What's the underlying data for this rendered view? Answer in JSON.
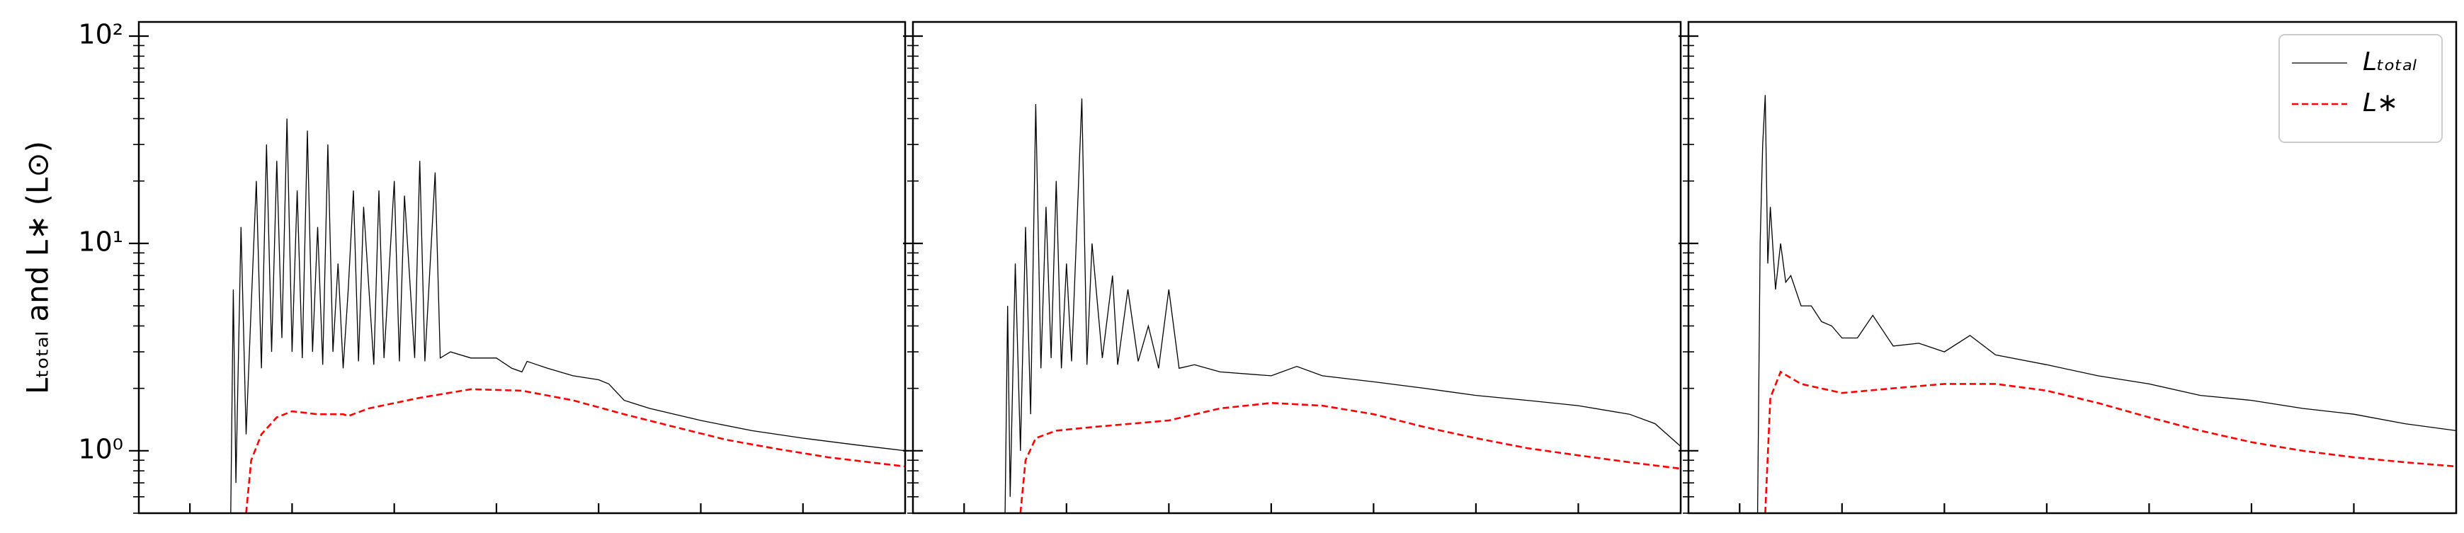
{
  "chart_data": [
    {
      "type": "line",
      "ylabel": "Lₜₒₜₐₗ and L∗ (L⊙)",
      "log": true,
      "xlim": [
        0,
        15
      ],
      "xticks": [
        1,
        3,
        5,
        7,
        9,
        11,
        13
      ],
      "ylim": [
        0.5,
        117
      ],
      "yticks": [
        {
          "value": 1,
          "label": "10⁰"
        },
        {
          "value": 10,
          "label": "10¹"
        },
        {
          "value": 100,
          "label": "10²"
        }
      ],
      "yminorticks": [
        0.5,
        0.6,
        0.7,
        0.8,
        0.9,
        2,
        3,
        4,
        5,
        6,
        7,
        8,
        9,
        20,
        30,
        40,
        50,
        60,
        70,
        80,
        90
      ],
      "series": [
        {
          "color": "#000000",
          "style": "solid",
          "x": [
            1.8,
            1.85,
            1.9,
            2.0,
            2.1,
            2.2,
            2.3,
            2.4,
            2.5,
            2.6,
            2.7,
            2.8,
            2.9,
            3.0,
            3.1,
            3.2,
            3.3,
            3.4,
            3.5,
            3.6,
            3.7,
            3.8,
            3.9,
            4.0,
            4.1,
            4.2,
            4.3,
            4.4,
            4.6,
            4.7,
            4.8,
            5.0,
            5.1,
            5.2,
            5.4,
            5.5,
            5.6,
            5.8,
            5.9,
            6.1,
            6.5,
            7.0,
            7.3,
            7.5,
            7.6,
            8.0,
            8.5,
            9.0,
            9.2,
            9.5,
            10,
            11,
            12,
            13,
            14,
            15
          ],
          "values": [
            0.5,
            6,
            0.7,
            12,
            1.2,
            5,
            20,
            2.5,
            30,
            3,
            25,
            3.5,
            40,
            3,
            18,
            2.8,
            35,
            3,
            12,
            2.6,
            30,
            3,
            8,
            2.5,
            6,
            18,
            2.7,
            15,
            2.6,
            18,
            2.8,
            20,
            2.7,
            17,
            2.8,
            25,
            2.7,
            22,
            2.8,
            3.0,
            2.8,
            2.8,
            2.5,
            2.4,
            2.7,
            2.5,
            2.3,
            2.2,
            2.1,
            1.75,
            1.6,
            1.4,
            1.25,
            1.15,
            1.07,
            1.0
          ]
        },
        {
          "color": "#ff0000",
          "style": "dashed",
          "x": [
            2.1,
            2.2,
            2.4,
            2.7,
            3.0,
            3.5,
            4.0,
            4.1,
            4.5,
            5.5,
            6.5,
            7.5,
            8.5,
            9.5,
            10.5,
            11.5,
            12.5,
            13.5,
            15
          ],
          "values": [
            0.5,
            0.9,
            1.2,
            1.45,
            1.55,
            1.5,
            1.5,
            1.47,
            1.6,
            1.8,
            1.98,
            1.95,
            1.75,
            1.5,
            1.3,
            1.13,
            1.02,
            0.93,
            0.84
          ]
        }
      ]
    },
    {
      "type": "line",
      "log": true,
      "xlim": [
        0,
        15
      ],
      "xticks": [
        1,
        3,
        5,
        7,
        9,
        11,
        13
      ],
      "ylim": [
        0.5,
        117
      ],
      "yticks": [
        1,
        10,
        100
      ],
      "yminorticks": [
        0.5,
        0.6,
        0.7,
        0.8,
        0.9,
        2,
        3,
        4,
        5,
        6,
        7,
        8,
        9,
        20,
        30,
        40,
        50,
        60,
        70,
        80,
        90
      ],
      "series": [
        {
          "color": "#000000",
          "style": "solid",
          "x": [
            1.8,
            1.85,
            1.9,
            2.0,
            2.1,
            2.2,
            2.3,
            2.4,
            2.5,
            2.6,
            2.7,
            2.8,
            2.9,
            3.0,
            3.1,
            3.3,
            3.4,
            3.5,
            3.7,
            3.9,
            4.0,
            4.2,
            4.4,
            4.6,
            4.8,
            5.0,
            5.2,
            5.5,
            6,
            7,
            7.5,
            8,
            9,
            10,
            11,
            12,
            13,
            14,
            14.5,
            15
          ],
          "values": [
            0.5,
            5,
            0.6,
            8,
            1.0,
            12,
            1.5,
            47,
            2.5,
            15,
            2.8,
            20,
            2.5,
            8,
            2.7,
            50,
            2.6,
            10,
            2.8,
            7,
            2.6,
            6,
            2.7,
            4,
            2.5,
            6,
            2.5,
            2.6,
            2.4,
            2.3,
            2.55,
            2.3,
            2.15,
            2.0,
            1.85,
            1.75,
            1.65,
            1.5,
            1.35,
            1.05
          ]
        },
        {
          "color": "#ff0000",
          "style": "dashed",
          "x": [
            2.1,
            2.2,
            2.4,
            2.8,
            3.5,
            5,
            6,
            7,
            8,
            9,
            10,
            11,
            12,
            13,
            14,
            15
          ],
          "values": [
            0.5,
            0.9,
            1.15,
            1.25,
            1.3,
            1.4,
            1.6,
            1.7,
            1.65,
            1.5,
            1.3,
            1.15,
            1.03,
            0.95,
            0.88,
            0.82
          ]
        }
      ]
    },
    {
      "type": "line",
      "log": true,
      "legend": "upper right",
      "xlim": [
        0,
        15
      ],
      "xticks": [
        1,
        3,
        5,
        7,
        9,
        11,
        13
      ],
      "ylim": [
        0.5,
        117
      ],
      "yticks": [
        1,
        10,
        100
      ],
      "yminorticks": [
        0.5,
        0.6,
        0.7,
        0.8,
        0.9,
        2,
        3,
        4,
        5,
        6,
        7,
        8,
        9,
        20,
        30,
        40,
        50,
        60,
        70,
        80,
        90
      ],
      "series": [
        {
          "name": "Lₜₒₜₐₗ",
          "color": "#000000",
          "style": "solid",
          "x": [
            1.35,
            1.4,
            1.45,
            1.5,
            1.55,
            1.6,
            1.7,
            1.8,
            1.9,
            2.0,
            2.2,
            2.4,
            2.6,
            2.8,
            3.0,
            3.3,
            3.6,
            4.0,
            4.5,
            5.0,
            5.5,
            6,
            7,
            8,
            9,
            10,
            11,
            12,
            13,
            14,
            15
          ],
          "values": [
            0.5,
            10,
            30,
            52,
            8,
            15,
            6,
            10,
            6.5,
            7,
            5,
            5,
            4.2,
            4,
            3.5,
            3.5,
            4.5,
            3.2,
            3.3,
            3,
            3.6,
            2.9,
            2.6,
            2.3,
            2.1,
            1.85,
            1.75,
            1.6,
            1.5,
            1.35,
            1.25
          ]
        },
        {
          "name": "L∗",
          "color": "#ff0000",
          "style": "dashed",
          "x": [
            1.5,
            1.6,
            1.8,
            2.2,
            3,
            4,
            5,
            6,
            7,
            8,
            9,
            10,
            11,
            12,
            13,
            14,
            15
          ],
          "values": [
            0.5,
            1.8,
            2.4,
            2.1,
            1.9,
            2.0,
            2.1,
            2.1,
            1.95,
            1.7,
            1.45,
            1.25,
            1.1,
            1.0,
            0.93,
            0.88,
            0.84
          ]
        }
      ]
    }
  ]
}
